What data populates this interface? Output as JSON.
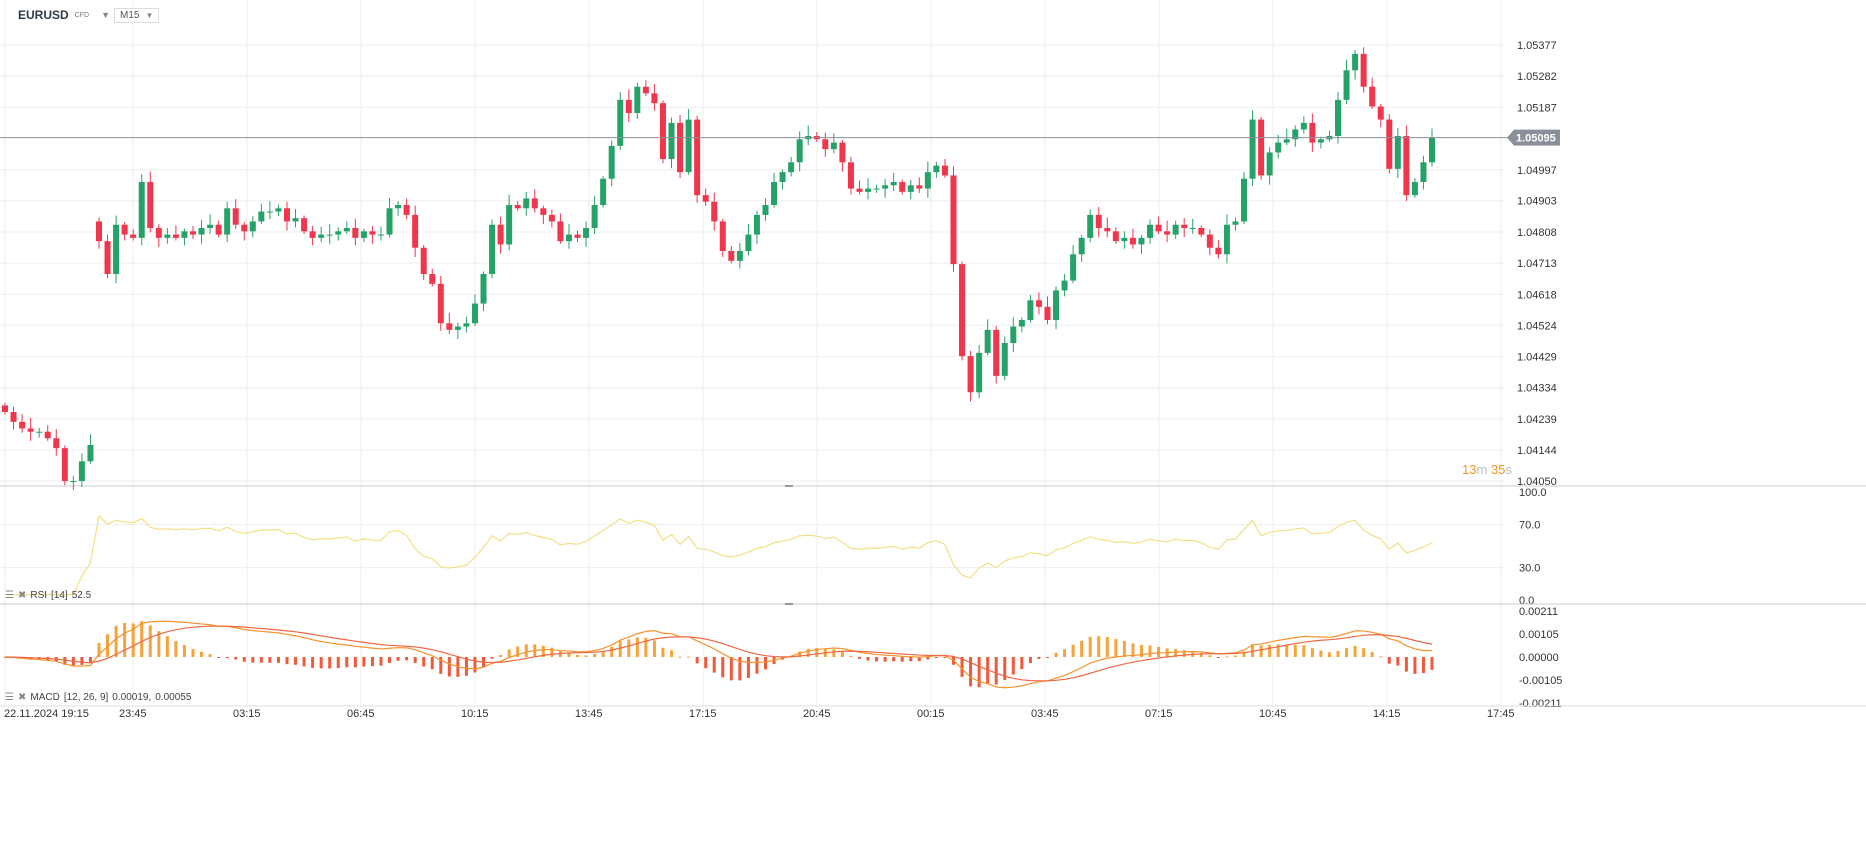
{
  "header": {
    "symbol": "EURUSD",
    "instrument_type": "CFD",
    "timeframe": "M15"
  },
  "countdown": {
    "minutes": "13",
    "m_unit": "m",
    "seconds": "35",
    "s_unit": "s"
  },
  "rsi_legend": {
    "name": "RSI",
    "params": "[14]",
    "value": "52.5"
  },
  "macd_legend": {
    "name": "MACD",
    "params": "[12, 26, 9]",
    "value1": "0.00019,",
    "value2": "0.00055"
  },
  "colors": {
    "up": "#26a269",
    "down": "#f0364d",
    "rsi": "#f2df85",
    "macd_line": "#f5932c",
    "signal_line": "#ee6844",
    "hist_pos": "#f7a23a",
    "hist_neg": "#ef5a3a",
    "grid": "#eeeeee"
  },
  "chart_data": [
    {
      "type": "candlestick",
      "title": "EURUSD M15",
      "current_price": "1.05095",
      "ylim": [
        1.0405,
        1.0542
      ],
      "y_ticks": [
        "1.05377",
        "1.05282",
        "1.05187",
        "1.04997",
        "1.04903",
        "1.04808",
        "1.04713",
        "1.04618",
        "1.04524",
        "1.04429",
        "1.04334",
        "1.04239",
        "1.04144",
        "1.04050"
      ],
      "x_ticks": [
        "22.11.2024  19:15",
        "23:45",
        "03:15",
        "06:45",
        "10:15",
        "13:45",
        "17:15",
        "20:45",
        "00:15",
        "03:45",
        "07:15",
        "10:45",
        "14:15",
        "17:45"
      ],
      "closes": [
        1.0426,
        1.0423,
        1.0421,
        1.042,
        1.042,
        1.0418,
        1.0415,
        1.0405,
        1.0405,
        1.0411,
        1.0416,
        1.0478,
        1.0468,
        1.0483,
        1.048,
        1.0479,
        1.0496,
        1.0482,
        1.0479,
        1.048,
        1.0479,
        1.0481,
        1.048,
        1.0482,
        1.0483,
        1.048,
        1.0488,
        1.0483,
        1.0481,
        1.0484,
        1.0487,
        1.0487,
        1.0488,
        1.0484,
        1.0485,
        1.0481,
        1.0479,
        1.048,
        1.048,
        1.0481,
        1.0482,
        1.0479,
        1.0481,
        1.048,
        1.048,
        1.0488,
        1.0489,
        1.0486,
        1.0476,
        1.0468,
        1.0465,
        1.0453,
        1.0451,
        1.0452,
        1.0453,
        1.0459,
        1.0468,
        1.0483,
        1.0477,
        1.0489,
        1.0488,
        1.0491,
        1.0488,
        1.0486,
        1.0484,
        1.0478,
        1.048,
        1.0479,
        1.0482,
        1.0489,
        1.0497,
        1.0507,
        1.0521,
        1.0517,
        1.0525,
        1.0523,
        1.052,
        1.0503,
        1.0514,
        1.0499,
        1.0515,
        1.0492,
        1.049,
        1.0484,
        1.0475,
        1.0472,
        1.0475,
        1.048,
        1.0486,
        1.0489,
        1.0496,
        1.0499,
        1.0502,
        1.0509,
        1.051,
        1.0509,
        1.0506,
        1.0508,
        1.0502,
        1.0494,
        1.0493,
        1.0494,
        1.0494,
        1.0495,
        1.0496,
        1.0493,
        1.0495,
        1.0494,
        1.0499,
        1.0501,
        1.0498,
        1.0471,
        1.0443,
        1.0432,
        1.0444,
        1.0451,
        1.0437,
        1.0447,
        1.0452,
        1.0454,
        1.046,
        1.0458,
        1.0454,
        1.0463,
        1.0466,
        1.0474,
        1.0479,
        1.0486,
        1.0482,
        1.0481,
        1.0478,
        1.0479,
        1.0477,
        1.0479,
        1.0483,
        1.0481,
        1.048,
        1.0483,
        1.0482,
        1.0482,
        1.048,
        1.0476,
        1.0474,
        1.0483,
        1.0484,
        1.0497,
        1.0515,
        1.0498,
        1.0505,
        1.0508,
        1.0509,
        1.0512,
        1.0514,
        1.0508,
        1.0509,
        1.051,
        1.0521,
        1.053,
        1.0535,
        1.0525,
        1.0519,
        1.0515,
        1.05,
        1.051,
        1.0492,
        1.0496,
        1.0502,
        1.05095
      ]
    },
    {
      "type": "line",
      "title": "RSI [14]",
      "ylim": [
        0,
        100
      ],
      "y_ticks": [
        "100.0",
        "70.0",
        "30.0",
        "0.0"
      ],
      "last_value": 52.5
    },
    {
      "type": "bar+line",
      "title": "MACD [12, 26, 9]",
      "ylim": [
        -0.00211,
        0.00211
      ],
      "y_ticks": [
        "0.00211",
        "0.00105",
        "0.00000",
        "-0.00105",
        "-0.00211"
      ]
    }
  ]
}
